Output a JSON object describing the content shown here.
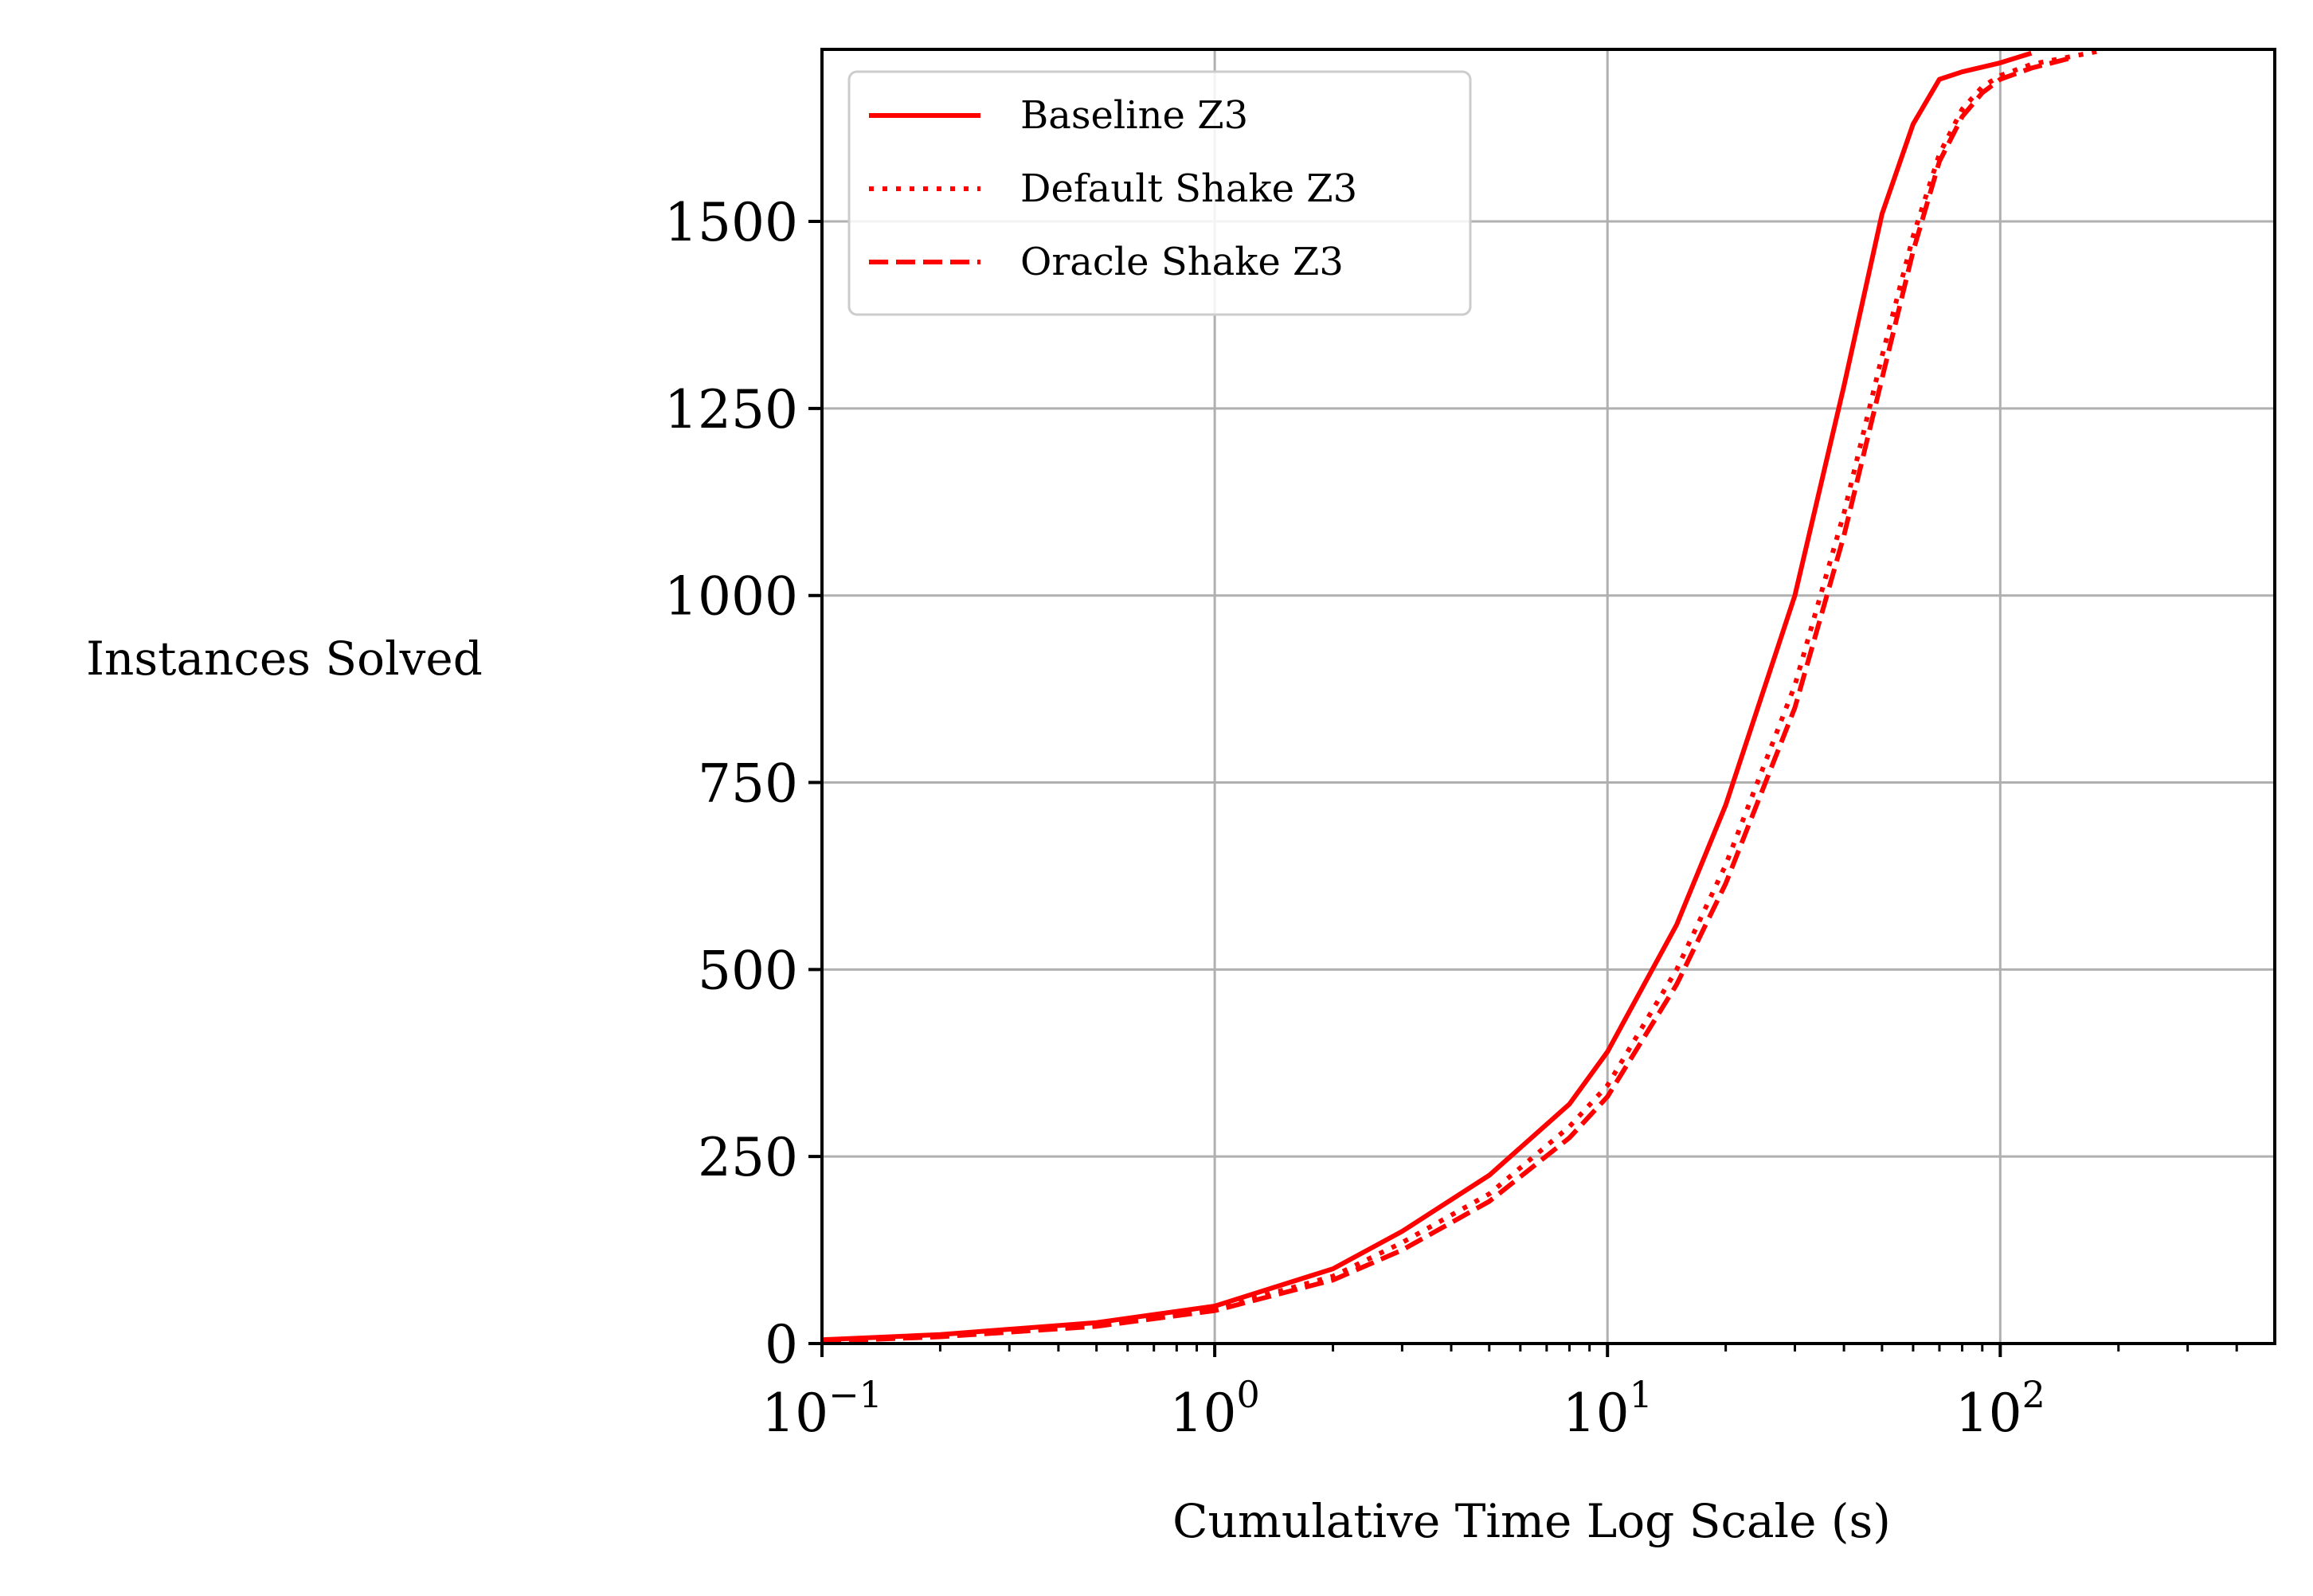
{
  "chart_data": {
    "type": "line",
    "title": "",
    "xlabel": "Cumulative Time Log Scale (s)",
    "ylabel": "Instances Solved",
    "x_scale": "log",
    "xlim": [
      0.1,
      500
    ],
    "ylim": [
      0,
      1730
    ],
    "grid": true,
    "legend_position": "top-left",
    "x_ticks": [
      {
        "value": 0.1,
        "base": "10",
        "exp": "−1"
      },
      {
        "value": 1,
        "base": "10",
        "exp": "0"
      },
      {
        "value": 10,
        "base": "10",
        "exp": "1"
      },
      {
        "value": 100,
        "base": "10",
        "exp": "2"
      }
    ],
    "y_ticks": [
      {
        "value": 0,
        "label": "0"
      },
      {
        "value": 250,
        "label": "250"
      },
      {
        "value": 500,
        "label": "500"
      },
      {
        "value": 750,
        "label": "750"
      },
      {
        "value": 1000,
        "label": "1000"
      },
      {
        "value": 1250,
        "label": "1250"
      },
      {
        "value": 1500,
        "label": "1500"
      }
    ],
    "series": [
      {
        "name": "Baseline Z3",
        "color": "#ff0000",
        "style": "solid",
        "x": [
          0.1,
          0.2,
          0.5,
          1.0,
          2.0,
          3.0,
          5.0,
          8.0,
          10,
          15,
          20,
          30,
          40,
          50,
          60,
          70,
          80,
          100,
          120
        ],
        "y": [
          5,
          12,
          28,
          50,
          100,
          150,
          225,
          320,
          390,
          560,
          720,
          1000,
          1280,
          1510,
          1630,
          1690,
          1700,
          1712,
          1725
        ]
      },
      {
        "name": "Default Shake Z3",
        "color": "#ff0000",
        "style": "dotted",
        "x": [
          0.1,
          0.2,
          0.5,
          1.0,
          2.0,
          3.0,
          5.0,
          8.0,
          10,
          15,
          20,
          30,
          40,
          50,
          60,
          70,
          80,
          90,
          100,
          120,
          150,
          180
        ],
        "y": [
          4,
          10,
          25,
          46,
          90,
          135,
          200,
          290,
          345,
          500,
          640,
          880,
          1110,
          1320,
          1480,
          1590,
          1650,
          1680,
          1695,
          1710,
          1720,
          1728
        ]
      },
      {
        "name": "Oracle Shake Z3",
        "color": "#ff0000",
        "style": "dashed",
        "x": [
          0.1,
          0.2,
          0.5,
          1.0,
          2.0,
          3.0,
          5.0,
          8.0,
          10,
          15,
          20,
          30,
          40,
          50,
          60,
          70,
          80,
          90,
          100,
          120,
          150
        ],
        "y": [
          3,
          9,
          23,
          44,
          85,
          125,
          190,
          275,
          330,
          480,
          615,
          850,
          1080,
          1290,
          1460,
          1580,
          1640,
          1672,
          1690,
          1705,
          1718
        ]
      }
    ]
  }
}
